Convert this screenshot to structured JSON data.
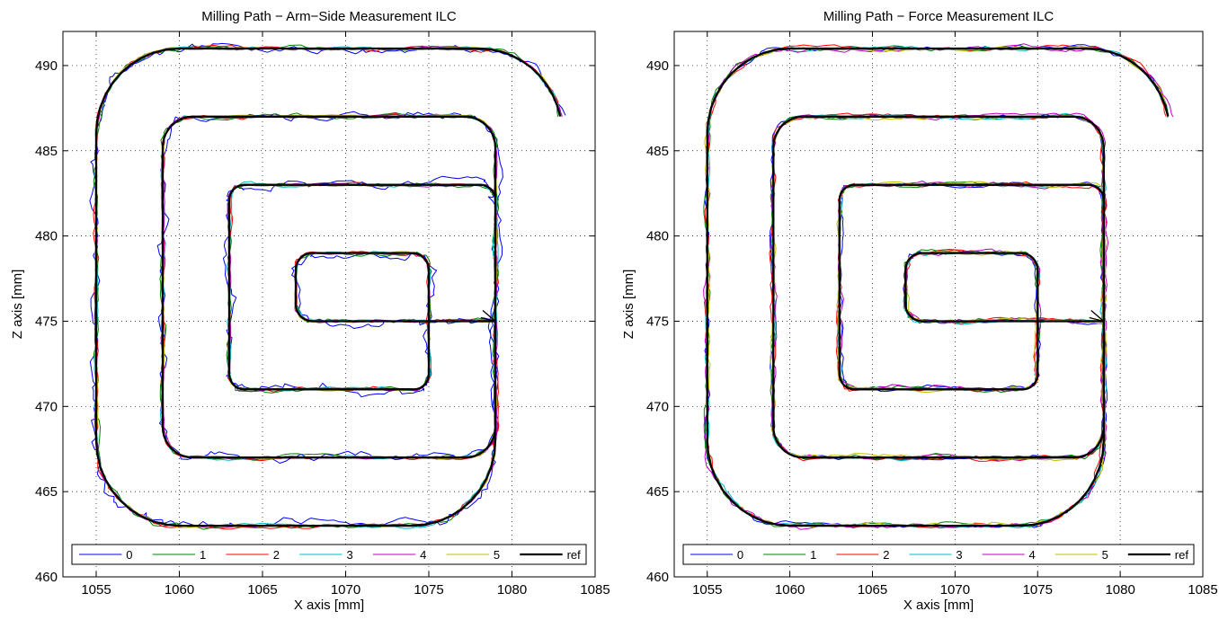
{
  "chart_data": [
    {
      "type": "line",
      "title": "Milling Path − Arm−Side Measurement ILC",
      "xlabel": "X axis [mm]",
      "ylabel": "Z axis [mm]",
      "xlim": [
        1053,
        1085
      ],
      "ylim": [
        460,
        492
      ],
      "xticks": [
        1055,
        1060,
        1065,
        1070,
        1075,
        1080,
        1085
      ],
      "yticks": [
        460,
        465,
        470,
        475,
        480,
        485,
        490
      ],
      "grid": true,
      "legend_position": "bottom",
      "reference_path": {
        "name": "ref",
        "loops": [
          {
            "xmin": 1067,
            "xmax": 1075,
            "zmin": 475,
            "zmax": 479,
            "r": 1.0
          },
          {
            "xmin": 1063,
            "xmax": 1079,
            "zmin": 471,
            "zmax": 483,
            "r": 0.9
          },
          {
            "xmin": 1059,
            "xmax": 1079,
            "zmin": 467,
            "zmax": 487,
            "r": 1.8
          },
          {
            "xmin": 1055,
            "xmax": 1083,
            "zmin": 463,
            "zmax": 491,
            "r": 5.0
          }
        ],
        "entry_x": 1079,
        "end_point": [
          1082.8,
          487.0
        ]
      },
      "series": [
        {
          "name": "0",
          "color": "#0000ff",
          "noise": 0.42
        },
        {
          "name": "1",
          "color": "#008000",
          "noise": 0.22
        },
        {
          "name": "2",
          "color": "#ff0000",
          "noise": 0.18
        },
        {
          "name": "3",
          "color": "#00bfbf",
          "noise": 0.15
        },
        {
          "name": "4",
          "color": "#bf00bf",
          "noise": 0.12
        },
        {
          "name": "5",
          "color": "#bfbf00",
          "noise": 0.1
        },
        {
          "name": "ref",
          "color": "#000000",
          "noise": 0
        }
      ]
    },
    {
      "type": "line",
      "title": "Milling Path − Force Measurement ILC",
      "xlabel": "X axis [mm]",
      "ylabel": "Z axis [mm]",
      "xlim": [
        1053,
        1085
      ],
      "ylim": [
        460,
        492
      ],
      "xticks": [
        1055,
        1060,
        1065,
        1070,
        1075,
        1080,
        1085
      ],
      "yticks": [
        460,
        465,
        470,
        475,
        480,
        485,
        490
      ],
      "grid": true,
      "legend_position": "bottom",
      "reference_path": {
        "name": "ref",
        "loops": [
          {
            "xmin": 1067,
            "xmax": 1075,
            "zmin": 475,
            "zmax": 479,
            "r": 1.0
          },
          {
            "xmin": 1063,
            "xmax": 1079,
            "zmin": 471,
            "zmax": 483,
            "r": 0.9
          },
          {
            "xmin": 1059,
            "xmax": 1079,
            "zmin": 467,
            "zmax": 487,
            "r": 1.8
          },
          {
            "xmin": 1055,
            "xmax": 1083,
            "zmin": 463,
            "zmax": 491,
            "r": 5.0
          }
        ],
        "entry_x": 1079,
        "end_point": [
          1082.8,
          487.0
        ]
      },
      "series": [
        {
          "name": "0",
          "color": "#0000ff",
          "noise": 0.22
        },
        {
          "name": "1",
          "color": "#008000",
          "noise": 0.2
        },
        {
          "name": "2",
          "color": "#ff0000",
          "noise": 0.2
        },
        {
          "name": "3",
          "color": "#00bfbf",
          "noise": 0.18
        },
        {
          "name": "4",
          "color": "#bf00bf",
          "noise": 0.25
        },
        {
          "name": "5",
          "color": "#bfbf00",
          "noise": 0.2
        },
        {
          "name": "ref",
          "color": "#000000",
          "noise": 0
        }
      ]
    }
  ]
}
